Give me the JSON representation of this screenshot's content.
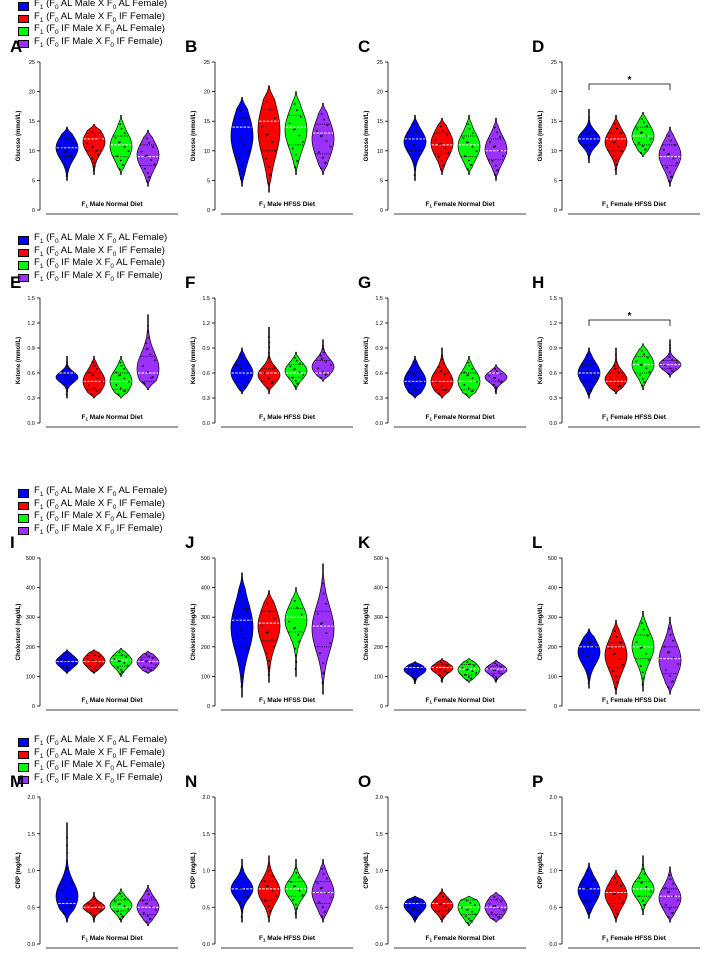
{
  "legend": {
    "entries": [
      {
        "pre": "F",
        "sub1": "1",
        "mid": " (F",
        "sub2": "0",
        "post": " AL Male X F",
        "sub3": "0",
        "end": " AL Female)",
        "color": "#0000ff"
      },
      {
        "pre": "F",
        "sub1": "1",
        "mid": " (F",
        "sub2": "0",
        "post": " AL Male X F",
        "sub3": "0",
        "end": " IF Female)",
        "color": "#ff0000"
      },
      {
        "pre": "F",
        "sub1": "1",
        "mid": " (F",
        "sub2": "0",
        "post": " IF Male X F",
        "sub3": "0",
        "end": " AL Female)",
        "color": "#00ff00"
      },
      {
        "pre": "F",
        "sub1": "1",
        "mid": " (F",
        "sub2": "0",
        "post": " IF Male X F",
        "sub3": "0",
        "end": " IF Female)",
        "color": "#9b30ff"
      }
    ]
  },
  "chart_data": [
    {
      "type": "violin",
      "panel": "A",
      "ylabel": "Glucose (mmol/L)",
      "ylim": [
        0,
        25
      ],
      "ticks": [
        0,
        5,
        10,
        15,
        20,
        25
      ],
      "xlabel_pre": "F",
      "xlabel_sub": "1",
      "xlabel": " Male Normal Diet",
      "medians": [
        10.5,
        12,
        11,
        9
      ],
      "q1": [
        9,
        10,
        9,
        7.5
      ],
      "q3": [
        12,
        13,
        12.5,
        11
      ],
      "min": [
        5,
        6,
        6,
        4
      ],
      "max": [
        14,
        14.5,
        16,
        13.5
      ],
      "sig": null
    },
    {
      "type": "violin",
      "panel": "B",
      "ylabel": "Glucose (mmol/L)",
      "ylim": [
        0,
        25
      ],
      "ticks": [
        0,
        5,
        10,
        15,
        20,
        25
      ],
      "xlabel_pre": "F",
      "xlabel_sub": "1",
      "xlabel": " Male HFSS Diet",
      "medians": [
        14,
        15,
        14,
        13
      ],
      "q1": [
        9.5,
        10,
        11,
        9.5
      ],
      "q3": [
        15.5,
        17,
        16,
        14.5
      ],
      "min": [
        4,
        3,
        6,
        6
      ],
      "max": [
        19,
        21,
        20,
        18
      ],
      "sig": null
    },
    {
      "type": "violin",
      "panel": "C",
      "ylabel": "Glucose (mmol/L)",
      "ylim": [
        0,
        25
      ],
      "ticks": [
        0,
        5,
        10,
        15,
        20,
        25
      ],
      "xlabel_pre": "F",
      "xlabel_sub": "1",
      "xlabel": " Female Normal Diet",
      "medians": [
        12,
        11,
        11,
        10
      ],
      "q1": [
        10,
        9.5,
        9,
        8.5
      ],
      "q3": [
        13,
        13,
        12.5,
        12
      ],
      "min": [
        5,
        6,
        6,
        5
      ],
      "max": [
        16,
        15.5,
        16,
        15.5
      ],
      "sig": null
    },
    {
      "type": "violin",
      "panel": "D",
      "ylabel": "Glucose (mmol/L)",
      "ylim": [
        0,
        25
      ],
      "ticks": [
        0,
        5,
        10,
        15,
        20,
        25
      ],
      "xlabel_pre": "F",
      "xlabel_sub": "1",
      "xlabel": " Female HFSS Diet",
      "medians": [
        12,
        12,
        12.5,
        9
      ],
      "q1": [
        11,
        10,
        11,
        7.5
      ],
      "q3": [
        13,
        13,
        14,
        11
      ],
      "min": [
        8,
        6,
        9,
        4
      ],
      "max": [
        17,
        16,
        16.5,
        14
      ],
      "sig": "*"
    },
    {
      "type": "violin",
      "panel": "E",
      "ylabel": "Ketone (mmol/L)",
      "ylim": [
        0,
        1.5
      ],
      "ticks": [
        0.0,
        0.3,
        0.6,
        0.9,
        1.2,
        1.5
      ],
      "xlabel_pre": "F",
      "xlabel_sub": "1",
      "xlabel": " Male Normal Diet",
      "medians": [
        0.6,
        0.5,
        0.5,
        0.6
      ],
      "q1": [
        0.5,
        0.4,
        0.4,
        0.5
      ],
      "q3": [
        0.6,
        0.6,
        0.6,
        0.8
      ],
      "min": [
        0.3,
        0.3,
        0.3,
        0.4
      ],
      "max": [
        0.8,
        0.8,
        0.8,
        1.3
      ],
      "sig": null
    },
    {
      "type": "violin",
      "panel": "F",
      "ylabel": "Ketone (mmol/L)",
      "ylim": [
        0,
        1.5
      ],
      "ticks": [
        0.0,
        0.3,
        0.6,
        0.9,
        1.2,
        1.5
      ],
      "xlabel_pre": "F",
      "xlabel_sub": "1",
      "xlabel": " Male HFSS Diet",
      "medians": [
        0.6,
        0.6,
        0.6,
        0.6
      ],
      "q1": [
        0.5,
        0.5,
        0.55,
        0.6
      ],
      "q3": [
        0.7,
        0.65,
        0.7,
        0.75
      ],
      "min": [
        0.35,
        0.35,
        0.4,
        0.5
      ],
      "max": [
        0.9,
        1.15,
        0.85,
        1.0
      ],
      "sig": null
    },
    {
      "type": "violin",
      "panel": "G",
      "ylabel": "Ketone (mmol/L)",
      "ylim": [
        0,
        1.5
      ],
      "ticks": [
        0.0,
        0.3,
        0.6,
        0.9,
        1.2,
        1.5
      ],
      "xlabel_pre": "F",
      "xlabel_sub": "1",
      "xlabel": " Female Normal Diet",
      "medians": [
        0.5,
        0.5,
        0.5,
        0.6
      ],
      "q1": [
        0.4,
        0.4,
        0.4,
        0.5
      ],
      "q3": [
        0.6,
        0.6,
        0.6,
        0.6
      ],
      "min": [
        0.3,
        0.3,
        0.3,
        0.35
      ],
      "max": [
        0.8,
        0.9,
        0.8,
        0.7
      ],
      "sig": null
    },
    {
      "type": "violin",
      "panel": "H",
      "ylabel": "Ketone (mmol/L)",
      "ylim": [
        0,
        1.5
      ],
      "ticks": [
        0.0,
        0.3,
        0.6,
        0.9,
        1.2,
        1.5
      ],
      "xlabel_pre": "F",
      "xlabel_sub": "1",
      "xlabel": " Female HFSS Diet",
      "medians": [
        0.6,
        0.5,
        0.7,
        0.7
      ],
      "q1": [
        0.5,
        0.45,
        0.6,
        0.65
      ],
      "q3": [
        0.7,
        0.6,
        0.8,
        0.75
      ],
      "min": [
        0.3,
        0.35,
        0.4,
        0.55
      ],
      "max": [
        0.9,
        0.9,
        0.95,
        1.0
      ],
      "sig": "*"
    },
    {
      "type": "violin",
      "panel": "I",
      "ylabel": "Cholesterol (mg/dL)",
      "ylim": [
        0,
        500
      ],
      "ticks": [
        0,
        100,
        200,
        300,
        400,
        500
      ],
      "xlabel_pre": "F",
      "xlabel_sub": "1",
      "xlabel": " Male Normal Diet",
      "medians": [
        150,
        150,
        155,
        150
      ],
      "q1": [
        135,
        135,
        135,
        130
      ],
      "q3": [
        165,
        170,
        170,
        165
      ],
      "min": [
        110,
        110,
        100,
        110
      ],
      "max": [
        190,
        190,
        195,
        185
      ],
      "sig": null
    },
    {
      "type": "violin",
      "panel": "J",
      "ylabel": "Cholesterol (mg/dL)",
      "ylim": [
        0,
        500
      ],
      "ticks": [
        0,
        100,
        200,
        300,
        400,
        500
      ],
      "xlabel_pre": "F",
      "xlabel_sub": "1",
      "xlabel": " Male HFSS Diet",
      "medians": [
        290,
        280,
        300,
        270
      ],
      "q1": [
        200,
        220,
        250,
        200
      ],
      "q3": [
        330,
        320,
        330,
        320
      ],
      "min": [
        30,
        80,
        100,
        40
      ],
      "max": [
        450,
        390,
        400,
        480
      ],
      "sig": null
    },
    {
      "type": "violin",
      "panel": "K",
      "ylabel": "Cholesterol (mg/dL)",
      "ylim": [
        0,
        500
      ],
      "ticks": [
        0,
        100,
        200,
        300,
        400,
        500
      ],
      "xlabel_pre": "F",
      "xlabel_sub": "1",
      "xlabel": " Female Normal Diet",
      "medians": [
        130,
        130,
        125,
        125
      ],
      "q1": [
        110,
        115,
        105,
        110
      ],
      "q3": [
        135,
        140,
        140,
        135
      ],
      "min": [
        75,
        80,
        80,
        80
      ],
      "max": [
        150,
        160,
        160,
        155
      ],
      "sig": null
    },
    {
      "type": "violin",
      "panel": "L",
      "ylabel": "Cholesterol (mg/dL)",
      "ylim": [
        0,
        500
      ],
      "ticks": [
        0,
        100,
        200,
        300,
        400,
        500
      ],
      "xlabel_pre": "F",
      "xlabel_sub": "1",
      "xlabel": " Female HFSS Diet",
      "medians": [
        200,
        200,
        200,
        160
      ],
      "q1": [
        150,
        130,
        160,
        110
      ],
      "q3": [
        215,
        215,
        240,
        200
      ],
      "min": [
        60,
        40,
        50,
        40
      ],
      "max": [
        260,
        290,
        320,
        300
      ],
      "sig": null
    },
    {
      "type": "violin",
      "panel": "M",
      "ylabel": "CRP (mg/dL)",
      "ylim": [
        0,
        2.0
      ],
      "ticks": [
        0.0,
        0.5,
        1.0,
        1.5,
        2.0
      ],
      "xlabel_pre": "F",
      "xlabel_sub": "1",
      "xlabel": " Male Normal Diet",
      "medians": [
        0.55,
        0.5,
        0.5,
        0.5
      ],
      "q1": [
        0.5,
        0.45,
        0.45,
        0.4
      ],
      "q3": [
        0.8,
        0.55,
        0.6,
        0.6
      ],
      "min": [
        0.3,
        0.3,
        0.3,
        0.25
      ],
      "max": [
        1.65,
        0.7,
        0.75,
        0.8
      ],
      "sig": null
    },
    {
      "type": "violin",
      "panel": "N",
      "ylabel": "CRP (mg/dL)",
      "ylim": [
        0,
        2.0
      ],
      "ticks": [
        0.0,
        0.5,
        1.0,
        1.5,
        2.0
      ],
      "xlabel_pre": "F",
      "xlabel_sub": "1",
      "xlabel": " Male HFSS Diet",
      "medians": [
        0.75,
        0.75,
        0.75,
        0.7
      ],
      "q1": [
        0.65,
        0.6,
        0.65,
        0.55
      ],
      "q3": [
        0.85,
        0.85,
        0.85,
        0.85
      ],
      "min": [
        0.3,
        0.3,
        0.35,
        0.3
      ],
      "max": [
        1.15,
        1.2,
        1.15,
        1.15
      ],
      "sig": null
    },
    {
      "type": "violin",
      "panel": "O",
      "ylabel": "CRP (mg/dL)",
      "ylim": [
        0,
        2.0
      ],
      "ticks": [
        0.0,
        0.5,
        1.0,
        1.5,
        2.0
      ],
      "xlabel_pre": "F",
      "xlabel_sub": "1",
      "xlabel": " Female Normal Diet",
      "medians": [
        0.55,
        0.55,
        0.5,
        0.5
      ],
      "q1": [
        0.45,
        0.45,
        0.4,
        0.4
      ],
      "q3": [
        0.6,
        0.6,
        0.6,
        0.6
      ],
      "min": [
        0.3,
        0.3,
        0.25,
        0.3
      ],
      "max": [
        0.65,
        0.75,
        0.65,
        0.7
      ],
      "sig": null
    },
    {
      "type": "violin",
      "panel": "P",
      "ylabel": "CRP (mg/dL)",
      "ylim": [
        0,
        2.0
      ],
      "ticks": [
        0.0,
        0.5,
        1.0,
        1.5,
        2.0
      ],
      "xlabel_pre": "F",
      "xlabel_sub": "1",
      "xlabel": " Female HFSS Diet",
      "medians": [
        0.75,
        0.7,
        0.75,
        0.65
      ],
      "q1": [
        0.6,
        0.55,
        0.65,
        0.5
      ],
      "q3": [
        0.85,
        0.8,
        0.85,
        0.75
      ],
      "min": [
        0.35,
        0.3,
        0.4,
        0.3
      ],
      "max": [
        1.1,
        1.0,
        1.2,
        1.05
      ],
      "sig": null
    }
  ]
}
